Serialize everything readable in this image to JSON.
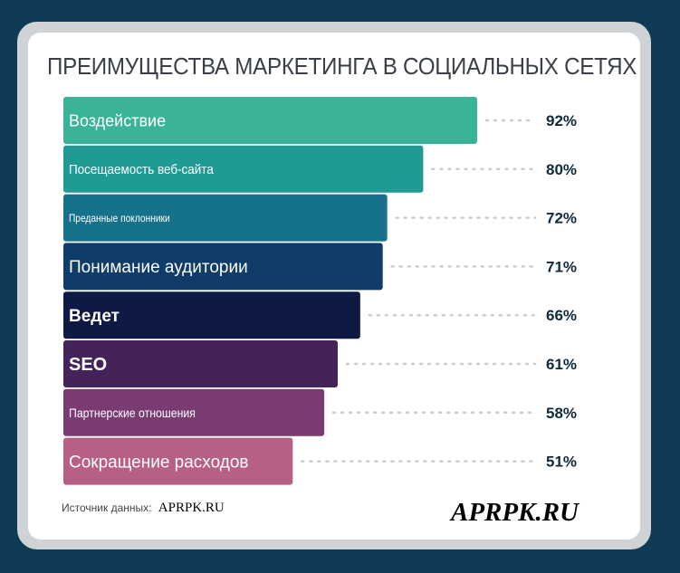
{
  "title": "ПРЕИМУЩЕСТВА МАРКЕТИНГА В СОЦИАЛЬНЫХ СЕТЯХ",
  "source": {
    "label": "Источник данных:",
    "value": "APRPK.RU"
  },
  "watermark": "APRPK.RU",
  "chart_data": {
    "type": "bar",
    "orientation": "horizontal",
    "title": "ПРЕИМУЩЕСТВА МАРКЕТИНГА В СОЦИАЛЬНЫХ СЕТЯХ",
    "categories": [
      "Воздействие",
      "Посещаемость веб-сайта",
      "Преданные поклонники",
      "Понимание аудитории",
      "Ведет",
      "SEO",
      "Партнерские отношения",
      "Сокращение расходов"
    ],
    "values": [
      92,
      80,
      72,
      71,
      66,
      61,
      58,
      51
    ],
    "value_labels": [
      "92%",
      "80%",
      "72%",
      "71%",
      "66%",
      "61%",
      "58%",
      "51%"
    ],
    "unit": "%",
    "colors": [
      "#3ab399",
      "#1f9a95",
      "#16718a",
      "#0f3c68",
      "#0e1a44",
      "#44225a",
      "#7a3a72",
      "#b85f85"
    ],
    "grid": false,
    "legend": "none"
  }
}
